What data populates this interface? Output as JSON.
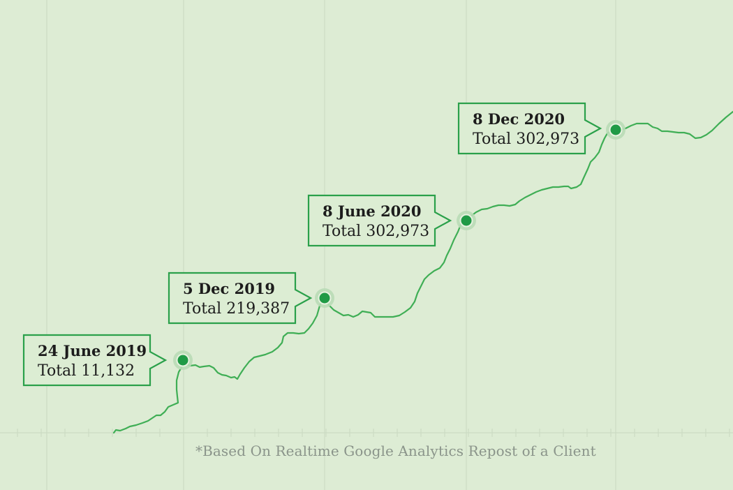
{
  "colors": {
    "background": "#ddecd4",
    "line": "#3fae55",
    "point": "#1f9a45",
    "callout_border": "#2aa04a",
    "callout_fill": "#dcedd3",
    "grid": "#c9d9c1",
    "footnote": "#8a948a"
  },
  "chart_data": {
    "type": "line",
    "x_unit": "date",
    "grid": true,
    "highlights": [
      {
        "date": "2019-06-24",
        "label": "24 June 2019",
        "total_label": "Total 11,132",
        "callout_side": "left"
      },
      {
        "date": "2019-12-05",
        "label": "5 Dec 2019",
        "total_label": "Total 219,387",
        "callout_side": "left"
      },
      {
        "date": "2020-06-08",
        "label": "8 June 2020",
        "total_label": "Total 302,973",
        "callout_side": "left"
      },
      {
        "date": "2020-12-08",
        "label": "8 Dec 2020",
        "total_label": "Total 302,973",
        "callout_side": "left"
      }
    ]
  },
  "footnote": "*Based On Realtime Google Analytics Repost of a Client"
}
